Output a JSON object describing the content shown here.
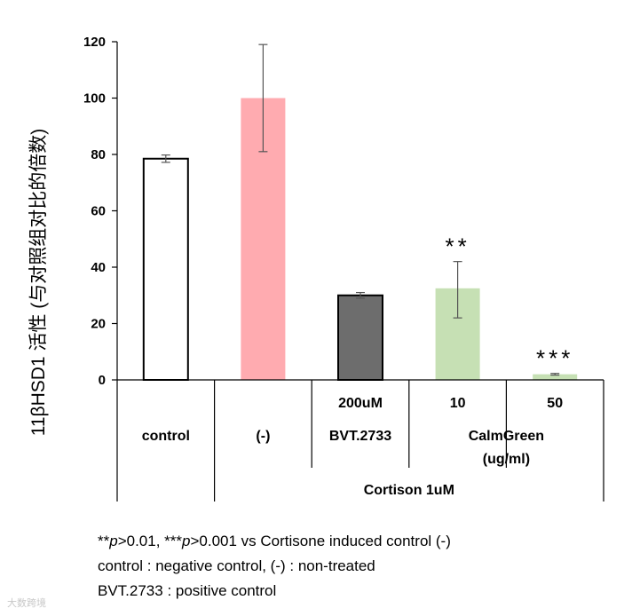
{
  "chart_data": {
    "type": "bar",
    "ylabel": "11βHSD1 活性 (与对照组对比的倍数)",
    "ylim": [
      0,
      120
    ],
    "yticks": [
      0,
      20,
      40,
      60,
      80,
      100,
      120
    ],
    "grid": false,
    "bars": [
      {
        "name": "control",
        "value": 78.5,
        "err_low": 77.2,
        "err_high": 79.8,
        "fill": "#ffffff",
        "stroke": "#000000",
        "sig": ""
      },
      {
        "name": "(-)",
        "value": 100,
        "err_low": 81,
        "err_high": 119,
        "fill": "#ffabb0",
        "stroke": "none",
        "sig": ""
      },
      {
        "name": "200uM BVT.2733",
        "value": 30,
        "err_low": 29,
        "err_high": 31,
        "fill": "#6d6d6d",
        "stroke": "#000000",
        "sig": ""
      },
      {
        "name": "CalmGreen 10",
        "value": 32.5,
        "err_low": 22,
        "err_high": 42,
        "fill": "#c6e0b4",
        "stroke": "none",
        "sig": "**"
      },
      {
        "name": "CalmGreen 50",
        "value": 2,
        "err_low": 1.7,
        "err_high": 2.3,
        "fill": "#c6e0b4",
        "stroke": "none",
        "sig": "***"
      }
    ],
    "table": {
      "row1": [
        "",
        "",
        "200uM",
        "10",
        "50"
      ],
      "row2": [
        "control",
        "(-)",
        "BVT.2733",
        "CalmGreen",
        ""
      ],
      "row3": [
        "",
        "",
        "",
        "(ug/ml)",
        ""
      ],
      "group_label": "Cortison 1uM"
    }
  },
  "footnotes": {
    "line1_pre": "**",
    "p1": "p",
    "line1_mid": ">0.01, ***",
    "p2": "p",
    "line1_post": ">0.001 vs Cortisone induced control (-)",
    "line2": "control : negative control, (-) : non-treated",
    "line3": "BVT.2733 : positive control"
  },
  "watermark": "大数跨境"
}
